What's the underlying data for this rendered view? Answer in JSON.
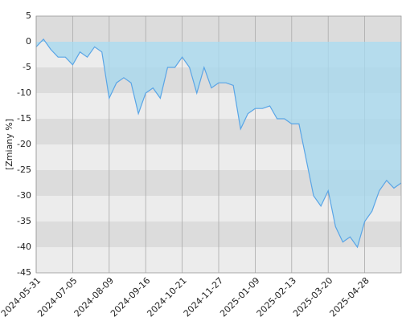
{
  "chart_data": {
    "type": "area",
    "y_label": "[Zmiany %]",
    "categories": [
      "2024-05-31",
      null,
      null,
      null,
      null,
      "2024-07-05",
      null,
      null,
      null,
      null,
      "2024-08-09",
      null,
      null,
      null,
      null,
      "2024-09-16",
      null,
      null,
      null,
      null,
      "2024-10-21",
      null,
      null,
      null,
      null,
      "2024-11-27",
      null,
      null,
      null,
      null,
      "2025-01-09",
      null,
      null,
      null,
      null,
      "2025-02-13",
      null,
      null,
      null,
      null,
      "2025-03-20",
      null,
      null,
      null,
      null,
      "2025-04-28",
      null,
      null,
      null,
      null,
      null
    ],
    "values": [
      -1,
      0.5,
      -1.5,
      -3,
      -3,
      -4.5,
      -2,
      -3,
      -1,
      -2,
      -11,
      -8,
      -7,
      -8,
      -14,
      -10,
      -9,
      -11,
      -5,
      -5,
      -3,
      -5,
      -10,
      -5,
      -9,
      -8,
      -8,
      -8.5,
      -17,
      -14,
      -13,
      -13,
      -12.5,
      -15,
      -15,
      -16,
      -16,
      -23,
      -30,
      -32,
      -29,
      -36,
      -39,
      -38,
      -40,
      -35,
      -33,
      -29,
      -27,
      -28.5,
      -27.5
    ],
    "color": "#5aa5e6",
    "fill": "#a8d8ee",
    "ylim": [
      -45,
      5
    ],
    "yticks": [
      -45,
      -40,
      -35,
      -30,
      -25,
      -20,
      -15,
      -10,
      -5,
      0,
      5
    ],
    "grid": true
  }
}
